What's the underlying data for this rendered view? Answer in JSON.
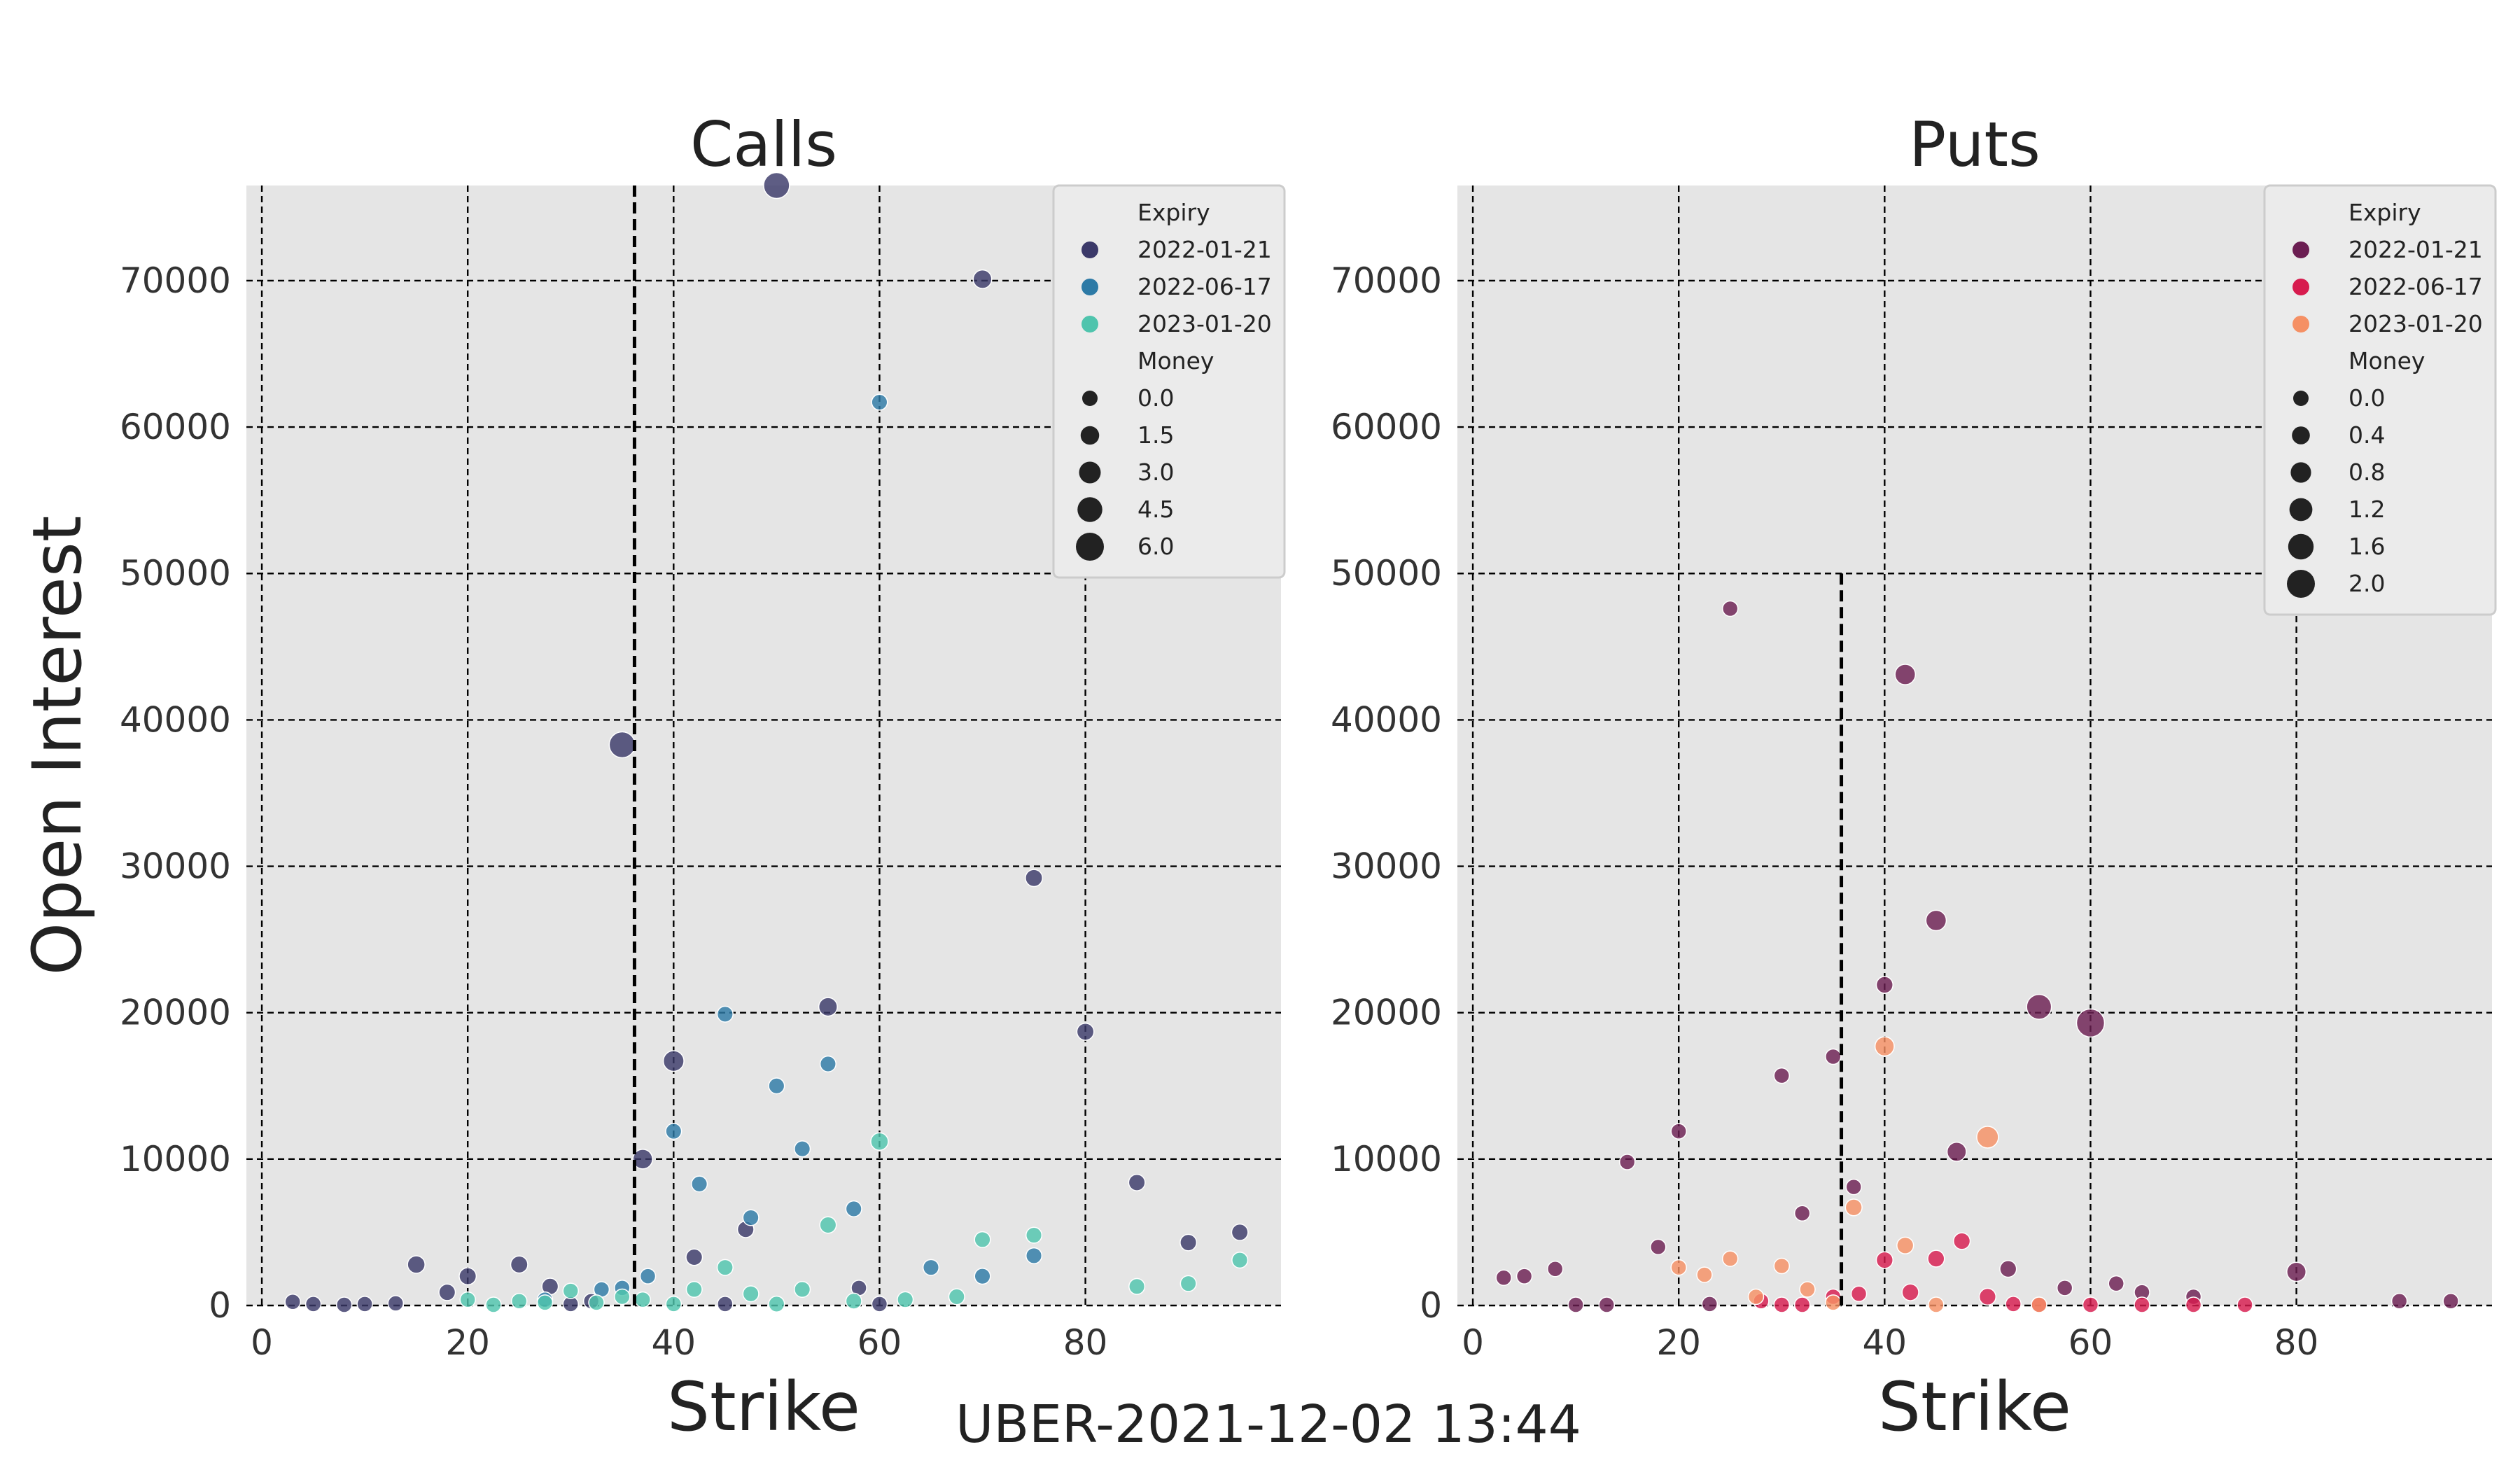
{
  "suptitle": "UBER-2021-12-02 13:44",
  "colors": {
    "panel_bg": "#e5e5e5",
    "grid": "#000000",
    "legend_bg": "#ebebeb",
    "legend_border": "#cccccc"
  },
  "chart_data": [
    {
      "type": "scatter",
      "title": "Calls",
      "xlabel": "Strike",
      "ylabel": "Open Interest",
      "xlim": [
        -1.5,
        99
      ],
      "ylim": [
        0,
        76500
      ],
      "xticks": [
        0,
        20,
        40,
        60,
        80
      ],
      "yticks": [
        0,
        10000,
        20000,
        30000,
        40000,
        50000,
        60000,
        70000
      ],
      "grid": true,
      "marker_line": {
        "x": 36.2,
        "y_top": 76500
      },
      "legend": {
        "placement": "top-right",
        "hue_title": "Expiry",
        "size_title": "Money",
        "hue_entries": [
          {
            "label": "2022-01-21",
            "color": "#3b3969"
          },
          {
            "label": "2022-06-17",
            "color": "#2d7aa6"
          },
          {
            "label": "2023-01-20",
            "color": "#4fc4ad"
          }
        ],
        "size_entries": [
          {
            "label": "0.0",
            "value": 0.0
          },
          {
            "label": "1.5",
            "value": 1.5
          },
          {
            "label": "3.0",
            "value": 3.0
          },
          {
            "label": "4.5",
            "value": 4.5
          },
          {
            "label": "6.0",
            "value": 6.0
          }
        ],
        "size_range": [
          0.0,
          6.0
        ]
      },
      "series": [
        {
          "name": "2022-01-21",
          "points": [
            [
              3,
              250,
              0
            ],
            [
              5,
              100,
              0
            ],
            [
              8,
              50,
              0
            ],
            [
              10,
              100,
              0
            ],
            [
              13,
              150,
              0
            ],
            [
              15,
              2800,
              1.0
            ],
            [
              18,
              900,
              0.5
            ],
            [
              20,
              2000,
              0.8
            ],
            [
              25,
              2800,
              0.8
            ],
            [
              28,
              1300,
              0.5
            ],
            [
              30,
              100,
              0
            ],
            [
              32,
              300,
              0
            ],
            [
              35,
              38300,
              5.0
            ],
            [
              37,
              10000,
              2.0
            ],
            [
              40,
              16700,
              2.5
            ],
            [
              42,
              3300,
              0.5
            ],
            [
              45,
              100,
              0
            ],
            [
              47,
              5200,
              0.5
            ],
            [
              50,
              76500,
              5.0
            ],
            [
              55,
              20400,
              1.5
            ],
            [
              58,
              1200,
              0
            ],
            [
              60,
              100,
              0
            ],
            [
              70,
              70100,
              1.5
            ],
            [
              75,
              29200,
              0.8
            ],
            [
              80,
              18700,
              0.8
            ],
            [
              85,
              8400,
              0.5
            ],
            [
              90,
              4300,
              0.5
            ],
            [
              95,
              5000,
              0.5
            ]
          ]
        },
        {
          "name": "2022-06-17",
          "points": [
            [
              27.5,
              400,
              0
            ],
            [
              33,
              1100,
              0
            ],
            [
              35,
              1200,
              0
            ],
            [
              37.5,
              2000,
              0
            ],
            [
              40,
              11900,
              0.2
            ],
            [
              42.5,
              8300,
              0.2
            ],
            [
              45,
              19900,
              0.2
            ],
            [
              47.5,
              6000,
              0.2
            ],
            [
              50,
              15000,
              0.2
            ],
            [
              52.5,
              10700,
              0.2
            ],
            [
              55,
              16500,
              0.2
            ],
            [
              57.5,
              6600,
              0.2
            ],
            [
              60,
              61700,
              0.2
            ],
            [
              65,
              2600,
              0.2
            ],
            [
              70,
              2000,
              0.2
            ],
            [
              75,
              3400,
              0.2
            ]
          ]
        },
        {
          "name": "2023-01-20",
          "points": [
            [
              20,
              400,
              0
            ],
            [
              22.5,
              50,
              0
            ],
            [
              25,
              300,
              0
            ],
            [
              27.5,
              200,
              0
            ],
            [
              30,
              1000,
              0
            ],
            [
              32.5,
              200,
              0
            ],
            [
              35,
              600,
              0
            ],
            [
              37,
              400,
              0
            ],
            [
              40,
              100,
              0
            ],
            [
              42,
              1100,
              0.2
            ],
            [
              45,
              2600,
              0.2
            ],
            [
              47.5,
              800,
              0.2
            ],
            [
              50,
              100,
              0.2
            ],
            [
              52.5,
              1100,
              0.2
            ],
            [
              55,
              5500,
              0.5
            ],
            [
              57.5,
              300,
              0.2
            ],
            [
              60,
              11200,
              1.0
            ],
            [
              62.5,
              400,
              0.2
            ],
            [
              67.5,
              600,
              0.2
            ],
            [
              70,
              4500,
              0.2
            ],
            [
              75,
              4800,
              0.2
            ],
            [
              85,
              1300,
              0.2
            ],
            [
              90,
              1500,
              0.2
            ],
            [
              95,
              3100,
              0.2
            ]
          ]
        }
      ]
    },
    {
      "type": "scatter",
      "title": "Puts",
      "xlabel": "Strike",
      "ylabel": "",
      "xlim": [
        -1.5,
        99
      ],
      "ylim": [
        0,
        76500
      ],
      "xticks": [
        0,
        20,
        40,
        60,
        80
      ],
      "yticks": [
        0,
        10000,
        20000,
        30000,
        40000,
        50000,
        60000,
        70000
      ],
      "grid": true,
      "marker_line": {
        "x": 35.8,
        "y_top": 50000
      },
      "legend": {
        "placement": "top-right",
        "hue_title": "Expiry",
        "size_title": "Money",
        "hue_entries": [
          {
            "label": "2022-01-21",
            "color": "#6b1e52"
          },
          {
            "label": "2022-06-17",
            "color": "#d71b4e"
          },
          {
            "label": "2023-01-20",
            "color": "#f59064"
          }
        ],
        "size_entries": [
          {
            "label": "0.0",
            "value": 0.0
          },
          {
            "label": "0.4",
            "value": 0.4
          },
          {
            "label": "0.8",
            "value": 0.8
          },
          {
            "label": "1.2",
            "value": 1.2
          },
          {
            "label": "1.6",
            "value": 1.6
          },
          {
            "label": "2.0",
            "value": 2.0
          }
        ],
        "size_range": [
          0.0,
          2.0
        ]
      },
      "series": [
        {
          "name": "2022-01-21",
          "points": [
            [
              3,
              1900,
              0
            ],
            [
              5,
              2000,
              0
            ],
            [
              8,
              2500,
              0
            ],
            [
              10,
              50,
              0
            ],
            [
              13,
              50,
              0
            ],
            [
              15,
              9800,
              0
            ],
            [
              18,
              4000,
              0
            ],
            [
              20,
              11900,
              0
            ],
            [
              23,
              100,
              0
            ],
            [
              30,
              15700,
              0
            ],
            [
              32,
              6300,
              0
            ],
            [
              35,
              17000,
              0
            ],
            [
              37,
              8100,
              0
            ],
            [
              25,
              47600,
              0
            ],
            [
              40,
              21900,
              0.2
            ],
            [
              42,
              43100,
              0.8
            ],
            [
              45,
              26300,
              0.8
            ],
            [
              47,
              10500,
              0.6
            ],
            [
              52,
              2500,
              0.2
            ],
            [
              55,
              20400,
              1.5
            ],
            [
              57.5,
              1200,
              0
            ],
            [
              60,
              19300,
              2.0
            ],
            [
              62.5,
              1500,
              0
            ],
            [
              65,
              900,
              0
            ],
            [
              70,
              600,
              0
            ],
            [
              80,
              2300,
              0.6
            ],
            [
              90,
              300,
              0
            ],
            [
              95,
              300,
              0
            ]
          ]
        },
        {
          "name": "2022-06-17",
          "points": [
            [
              28,
              300,
              0
            ],
            [
              30,
              50,
              0
            ],
            [
              32,
              50,
              0
            ],
            [
              35,
              600,
              0
            ],
            [
              37.5,
              800,
              0
            ],
            [
              40,
              3100,
              0.2
            ],
            [
              42.5,
              900,
              0.2
            ],
            [
              45,
              3200,
              0.2
            ],
            [
              47.5,
              4400,
              0.2
            ],
            [
              50,
              600,
              0.2
            ],
            [
              52.5,
              100,
              0
            ],
            [
              55,
              50,
              0
            ],
            [
              60,
              50,
              0
            ],
            [
              65,
              50,
              0
            ],
            [
              70,
              50,
              0
            ],
            [
              75,
              50,
              0
            ]
          ]
        },
        {
          "name": "2023-01-20",
          "points": [
            [
              20,
              2600,
              0
            ],
            [
              22.5,
              2100,
              0
            ],
            [
              25,
              3200,
              0
            ],
            [
              27.5,
              600,
              0
            ],
            [
              30,
              2700,
              0
            ],
            [
              32.5,
              1100,
              0
            ],
            [
              35,
              200,
              0
            ],
            [
              37,
              6700,
              0.2
            ],
            [
              40,
              17700,
              0.6
            ],
            [
              42,
              4100,
              0.2
            ],
            [
              45,
              50,
              0
            ],
            [
              50,
              11500,
              1.0
            ],
            [
              55,
              50,
              0
            ]
          ]
        }
      ]
    }
  ]
}
